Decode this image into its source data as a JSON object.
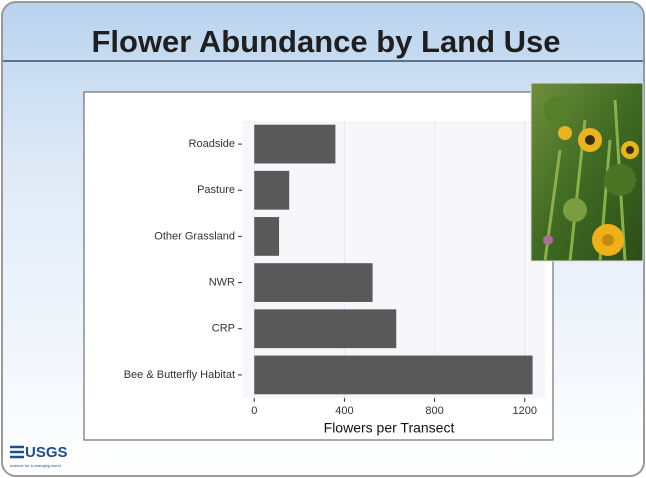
{
  "slide": {
    "title": "Flower Abundance by Land Use",
    "logo": "USGS",
    "logo_tagline": "science for a changing world"
  },
  "chart_data": {
    "type": "bar",
    "orientation": "horizontal",
    "categories": [
      "Roadside",
      "Pasture",
      "Other Grassland",
      "NWR",
      "CRP",
      "Bee & Butterfly Habitat"
    ],
    "values": [
      360,
      155,
      110,
      525,
      630,
      1235
    ],
    "color": "#595959",
    "xlabel": "Flowers per Transect",
    "xlim": [
      -50,
      1290
    ],
    "xticks": [
      0,
      400,
      800,
      1200
    ],
    "grid": true
  }
}
